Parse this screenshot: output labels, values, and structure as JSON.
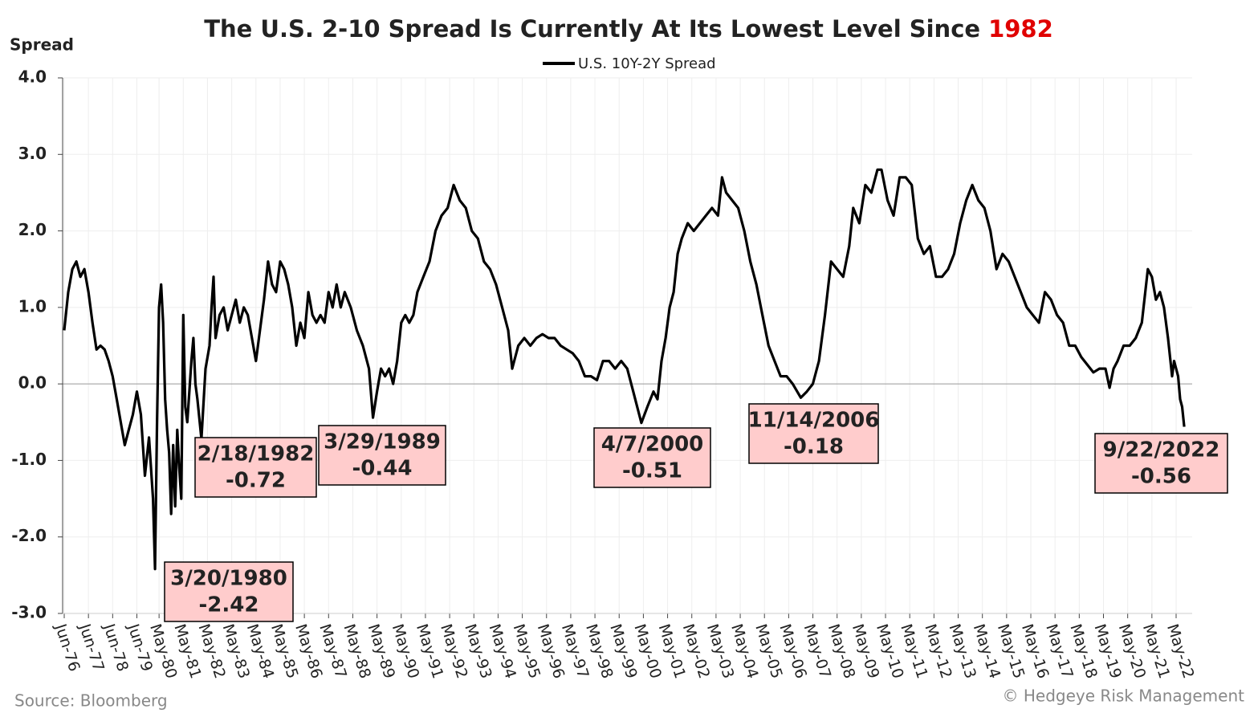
{
  "chart_data": {
    "type": "line",
    "title": "The U.S. 2-10 Spread Is Currently At Its Lowest Level Since",
    "title_highlight": "1982",
    "title_highlight_color": "#e00000",
    "y_axis_label": "Spread",
    "source": "Source: Bloomberg",
    "copyright": "© Hedgeye Risk Management",
    "grid": true,
    "legend": "top",
    "ylim": [
      -3,
      4
    ],
    "yticks": [
      {
        "value": 4,
        "label": "4.0"
      },
      {
        "value": 3,
        "label": "3.0"
      },
      {
        "value": 2,
        "label": "2.0"
      },
      {
        "value": 1,
        "label": "1.0"
      },
      {
        "value": 0,
        "label": "0.0"
      },
      {
        "value": -1,
        "label": "-1.0"
      },
      {
        "value": -2,
        "label": "-2.0"
      },
      {
        "value": -3,
        "label": "-3.0"
      }
    ],
    "xticks": [
      "Jun-76",
      "Jun-77",
      "Jun-78",
      "Jun-79",
      "May-80",
      "May-81",
      "May-82",
      "May-83",
      "May-84",
      "May-85",
      "May-86",
      "May-87",
      "May-88",
      "May-89",
      "May-90",
      "May-91",
      "May-92",
      "May-93",
      "May-94",
      "May-95",
      "May-96",
      "May-97",
      "May-98",
      "May-99",
      "May-00",
      "May-01",
      "May-02",
      "May-03",
      "May-04",
      "May-05",
      "May-06",
      "May-07",
      "May-08",
      "May-09",
      "May-10",
      "May-11",
      "May-12",
      "May-13",
      "May-14",
      "May-15",
      "May-16",
      "May-17",
      "May-18",
      "May-19",
      "May-20",
      "May-21",
      "May-22"
    ],
    "x": [
      "Jun-76",
      "Aug-76",
      "Oct-76",
      "Dec-76",
      "Feb-77",
      "Apr-77",
      "Jun-77",
      "Aug-77",
      "Oct-77",
      "Dec-77",
      "Feb-78",
      "Apr-78",
      "Jun-78",
      "Aug-78",
      "Oct-78",
      "Dec-78",
      "Feb-79",
      "Apr-79",
      "Jun-79",
      "Aug-79",
      "Oct-79",
      "Dec-79",
      "Feb-80",
      "Mar-80",
      "Apr-80",
      "May-80",
      "Jun-80",
      "Jul-80",
      "Aug-80",
      "Sep-80",
      "Oct-80",
      "Nov-80",
      "Dec-80",
      "Jan-81",
      "Feb-81",
      "Mar-81",
      "Apr-81",
      "May-81",
      "Jun-81",
      "Jul-81",
      "Sep-81",
      "Oct-81",
      "Nov-81",
      "Dec-81",
      "Feb-82",
      "Apr-82",
      "Jun-82",
      "Jul-82",
      "Aug-82",
      "Sep-82",
      "Nov-82",
      "Jan-83",
      "Mar-83",
      "May-83",
      "Jul-83",
      "Sep-83",
      "Nov-83",
      "Jan-84",
      "Mar-84",
      "May-84",
      "Jul-84",
      "Sep-84",
      "Nov-84",
      "Jan-85",
      "Mar-85",
      "May-85",
      "Jul-85",
      "Sep-85",
      "Nov-85",
      "Jan-86",
      "Mar-86",
      "May-86",
      "Jul-86",
      "Sep-86",
      "Nov-86",
      "Jan-87",
      "Mar-87",
      "May-87",
      "Jul-87",
      "Sep-87",
      "Nov-87",
      "Jan-88",
      "Apr-88",
      "Jul-88",
      "Oct-88",
      "Jan-89",
      "Mar-89",
      "May-89",
      "Jul-89",
      "Sep-89",
      "Nov-89",
      "Jan-90",
      "Mar-90",
      "May-90",
      "Jul-90",
      "Sep-90",
      "Nov-90",
      "Jan-91",
      "Apr-91",
      "Jul-91",
      "Oct-91",
      "Jan-92",
      "Apr-92",
      "Jul-92",
      "Oct-92",
      "Jan-93",
      "Apr-93",
      "Jul-93",
      "Oct-93",
      "Jan-94",
      "Apr-94",
      "Jul-94",
      "Oct-94",
      "Dec-94",
      "Mar-95",
      "Jun-95",
      "Sep-95",
      "Dec-95",
      "Mar-96",
      "Jun-96",
      "Sep-96",
      "Dec-96",
      "Mar-97",
      "Jun-97",
      "Sep-97",
      "Dec-97",
      "Mar-98",
      "Jun-98",
      "Sep-98",
      "Dec-98",
      "Mar-99",
      "Jun-99",
      "Sep-99",
      "Dec-99",
      "Apr-00",
      "Jul-00",
      "Oct-00",
      "Dec-00",
      "Feb-01",
      "Apr-01",
      "Jun-01",
      "Aug-01",
      "Oct-01",
      "Dec-01",
      "Mar-02",
      "Jun-02",
      "Sep-02",
      "Dec-02",
      "Mar-03",
      "Jun-03",
      "Aug-03",
      "Oct-03",
      "Jan-04",
      "Apr-04",
      "Jul-04",
      "Oct-04",
      "Jan-05",
      "Apr-05",
      "Jul-05",
      "Oct-05",
      "Jan-06",
      "Apr-06",
      "Jul-06",
      "Nov-06",
      "Feb-07",
      "May-07",
      "Aug-07",
      "Nov-07",
      "Feb-08",
      "May-08",
      "Aug-08",
      "Nov-08",
      "Jan-09",
      "Apr-09",
      "Jul-09",
      "Oct-09",
      "Jan-10",
      "Mar-10",
      "Jun-10",
      "Sep-10",
      "Dec-10",
      "Mar-11",
      "Jun-11",
      "Sep-11",
      "Dec-11",
      "Mar-12",
      "Jun-12",
      "Sep-12",
      "Dec-12",
      "Mar-13",
      "Jun-13",
      "Sep-13",
      "Dec-13",
      "Mar-14",
      "Jun-14",
      "Sep-14",
      "Dec-14",
      "Mar-15",
      "Jun-15",
      "Sep-15",
      "Dec-15",
      "Mar-16",
      "Jun-16",
      "Sep-16",
      "Dec-16",
      "Mar-17",
      "Jun-17",
      "Sep-17",
      "Dec-17",
      "Mar-18",
      "Jun-18",
      "Sep-18",
      "Dec-18",
      "Mar-19",
      "Jun-19",
      "Aug-19",
      "Oct-19",
      "Dec-19",
      "Mar-20",
      "Jun-20",
      "Sep-20",
      "Dec-20",
      "Mar-21",
      "May-21",
      "Jul-21",
      "Sep-21",
      "Nov-21",
      "Jan-22",
      "Mar-22",
      "Apr-22",
      "Jun-22",
      "Jul-22",
      "Aug-22",
      "Sep-22"
    ],
    "series": [
      {
        "name": "U.S. 10Y-2Y Spread",
        "color": "#000000",
        "values": [
          0.7,
          1.2,
          1.5,
          1.6,
          1.4,
          1.5,
          1.2,
          0.8,
          0.45,
          0.5,
          0.45,
          0.3,
          0.1,
          -0.2,
          -0.5,
          -0.8,
          -0.6,
          -0.4,
          -0.1,
          -0.4,
          -1.2,
          -0.7,
          -1.5,
          -2.42,
          -0.5,
          1.0,
          1.3,
          0.8,
          -0.2,
          -0.6,
          -0.9,
          -1.7,
          -0.8,
          -1.6,
          -0.6,
          -1.1,
          -1.5,
          0.9,
          -0.3,
          -0.5,
          0.3,
          0.6,
          0.0,
          -0.2,
          -0.72,
          0.2,
          0.5,
          1.0,
          1.4,
          0.6,
          0.9,
          1.0,
          0.7,
          0.9,
          1.1,
          0.8,
          1.0,
          0.9,
          0.6,
          0.3,
          0.7,
          1.1,
          1.6,
          1.3,
          1.2,
          1.6,
          1.5,
          1.3,
          1.0,
          0.5,
          0.8,
          0.6,
          1.2,
          0.9,
          0.8,
          0.9,
          0.8,
          1.2,
          1.0,
          1.3,
          1.0,
          1.2,
          1.0,
          0.7,
          0.5,
          0.2,
          -0.44,
          -0.1,
          0.2,
          0.1,
          0.2,
          0.0,
          0.3,
          0.8,
          0.9,
          0.8,
          0.9,
          1.2,
          1.4,
          1.6,
          2.0,
          2.2,
          2.3,
          2.6,
          2.4,
          2.3,
          2.0,
          1.9,
          1.6,
          1.5,
          1.3,
          1.0,
          0.7,
          0.2,
          0.5,
          0.6,
          0.5,
          0.6,
          0.65,
          0.6,
          0.6,
          0.5,
          0.45,
          0.4,
          0.3,
          0.1,
          0.1,
          0.05,
          0.3,
          0.3,
          0.2,
          0.3,
          0.2,
          -0.1,
          -0.51,
          -0.3,
          -0.1,
          -0.2,
          0.3,
          0.6,
          1.0,
          1.2,
          1.7,
          1.9,
          2.1,
          2.0,
          2.1,
          2.2,
          2.3,
          2.2,
          2.7,
          2.5,
          2.4,
          2.3,
          2.0,
          1.6,
          1.3,
          0.9,
          0.5,
          0.3,
          0.1,
          0.1,
          0.0,
          -0.18,
          -0.1,
          0.0,
          0.3,
          0.9,
          1.6,
          1.5,
          1.4,
          1.8,
          2.3,
          2.1,
          2.6,
          2.5,
          2.8,
          2.8,
          2.4,
          2.2,
          2.7,
          2.7,
          2.6,
          1.9,
          1.7,
          1.8,
          1.4,
          1.4,
          1.5,
          1.7,
          2.1,
          2.4,
          2.6,
          2.4,
          2.3,
          2.0,
          1.5,
          1.7,
          1.6,
          1.4,
          1.2,
          1.0,
          0.9,
          0.8,
          1.2,
          1.1,
          0.9,
          0.8,
          0.5,
          0.5,
          0.35,
          0.25,
          0.15,
          0.2,
          0.2,
          -0.05,
          0.2,
          0.3,
          0.5,
          0.5,
          0.6,
          0.8,
          1.5,
          1.4,
          1.1,
          1.2,
          1.0,
          0.6,
          0.1,
          0.3,
          0.1,
          -0.2,
          -0.3,
          -0.56
        ]
      }
    ],
    "annotations": [
      {
        "date": "3/20/1980",
        "value": -2.42
      },
      {
        "date": "2/18/1982",
        "value": -0.72
      },
      {
        "date": "3/29/1989",
        "value": -0.44
      },
      {
        "date": "4/7/2000",
        "value": -0.51
      },
      {
        "date": "11/14/2006",
        "value": -0.18
      },
      {
        "date": "9/22/2022",
        "value": -0.56
      }
    ],
    "annotation_color": "#ffcccc"
  }
}
